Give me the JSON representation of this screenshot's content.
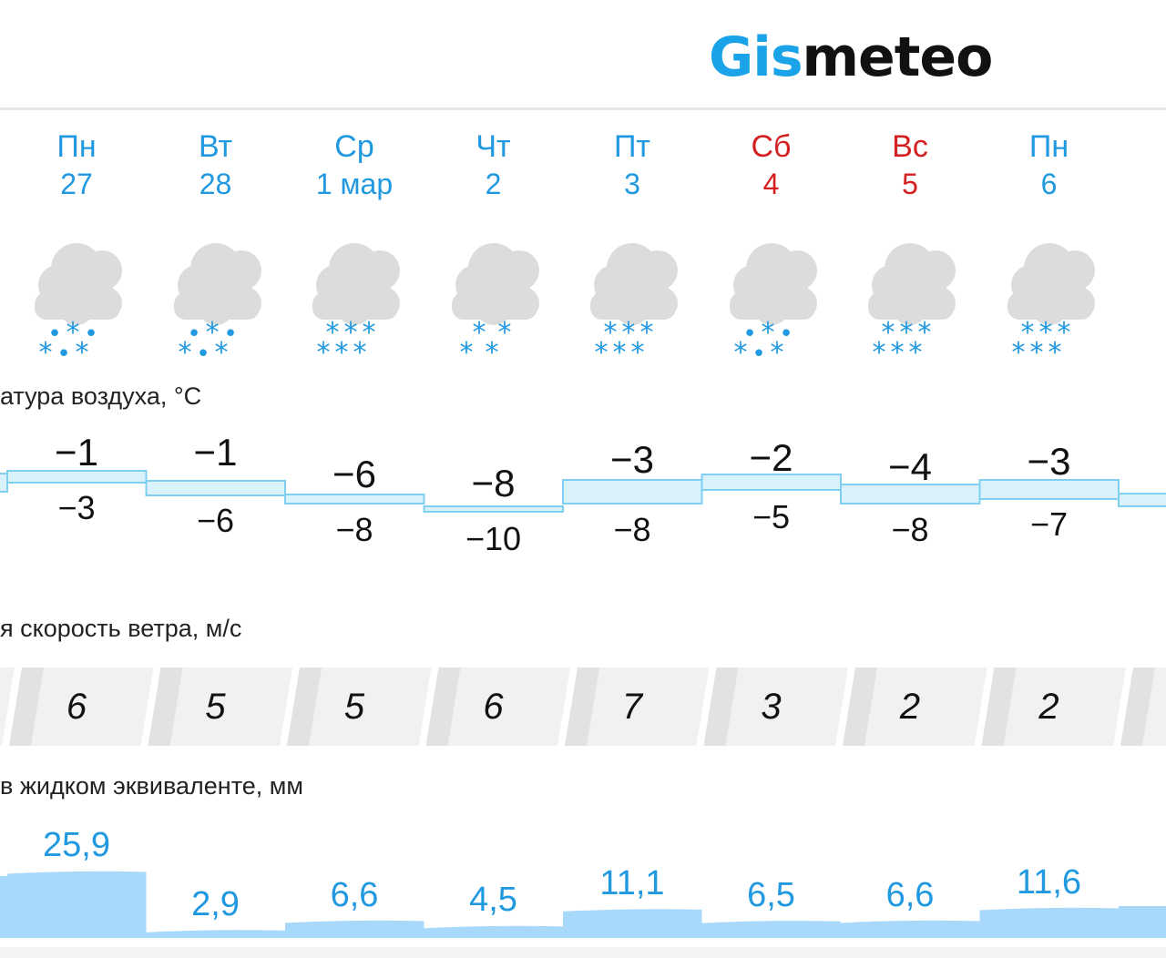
{
  "brand": {
    "gis": "Gis",
    "meteo": "meteo"
  },
  "sections": {
    "temperature": "атура воздуха, °C",
    "wind": "я скорость ветра, м/с",
    "precip": "в жидком эквиваленте, мм"
  },
  "days": [
    {
      "name": "Пн",
      "date": "27",
      "weekend": false,
      "tmax": "−1",
      "tmin": "−3",
      "wind": "6",
      "precip": "25,9",
      "precip_value": 25.9,
      "icon": "cloud-rain-snow-icon"
    },
    {
      "name": "Вт",
      "date": "28",
      "weekend": false,
      "tmax": "−1",
      "tmin": "−6",
      "wind": "5",
      "precip": "2,9",
      "precip_value": 2.9,
      "icon": "cloud-rain-snow-icon"
    },
    {
      "name": "Ср",
      "date": "1 мар",
      "weekend": false,
      "tmax": "−6",
      "tmin": "−8",
      "wind": "5",
      "precip": "6,6",
      "precip_value": 6.6,
      "icon": "cloud-heavy-snow-icon"
    },
    {
      "name": "Чт",
      "date": "2",
      "weekend": false,
      "tmax": "−8",
      "tmin": "−10",
      "wind": "6",
      "precip": "4,5",
      "precip_value": 4.5,
      "icon": "cloud-snow-icon"
    },
    {
      "name": "Пт",
      "date": "3",
      "weekend": false,
      "tmax": "−3",
      "tmin": "−8",
      "wind": "7",
      "precip": "11,1",
      "precip_value": 11.1,
      "icon": "cloud-heavy-snow-icon"
    },
    {
      "name": "Сб",
      "date": "4",
      "weekend": true,
      "tmax": "−2",
      "tmin": "−5",
      "wind": "3",
      "precip": "6,5",
      "precip_value": 6.5,
      "icon": "cloud-rain-snow-icon"
    },
    {
      "name": "Вс",
      "date": "5",
      "weekend": true,
      "tmax": "−4",
      "tmin": "−8",
      "wind": "2",
      "precip": "6,6",
      "precip_value": 6.6,
      "icon": "cloud-heavy-snow-icon"
    },
    {
      "name": "Пн",
      "date": "6",
      "weekend": false,
      "tmax": "−3",
      "tmin": "−7",
      "wind": "2",
      "precip": "11,6",
      "precip_value": 11.6,
      "icon": "cloud-heavy-snow-icon"
    }
  ],
  "colors": {
    "accent": "#2199e0",
    "weekend": "#d42020",
    "band_fill": "#d8f1fb",
    "band_line": "#7fd0f0",
    "precip_fill": "#a8d8fa",
    "cloud": "#dcdcdc"
  }
}
